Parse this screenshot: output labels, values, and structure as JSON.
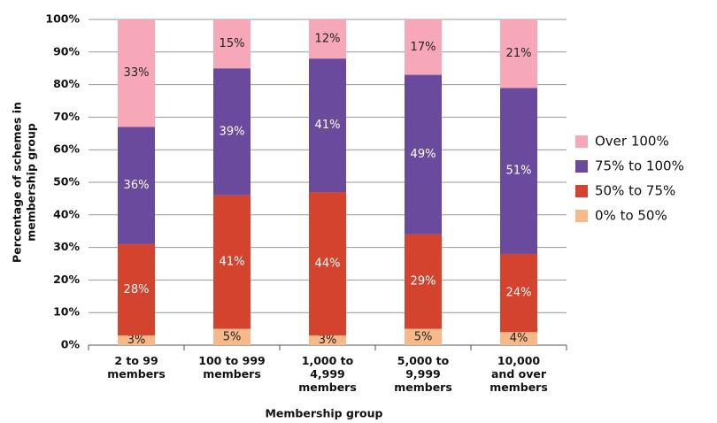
{
  "chart_data": {
    "type": "stacked_bar",
    "x_label": "Membership group",
    "y_label": [
      "Percentage of schemes in",
      "membership group"
    ],
    "categories": [
      [
        "2 to 99",
        "members"
      ],
      [
        "100 to 999",
        "members"
      ],
      [
        "1,000 to",
        "4,999",
        "members"
      ],
      [
        "5,000 to",
        "9,999",
        "members"
      ],
      [
        "10,000",
        "and over",
        "members"
      ]
    ],
    "series": [
      {
        "name": "0% to 50%",
        "color": "#f5b98a",
        "label_color": "#222",
        "values": [
          3,
          5,
          3,
          5,
          4
        ],
        "value_labels": [
          "3%",
          "5%",
          "3%",
          "5%",
          "4%"
        ]
      },
      {
        "name": "50% to 75%",
        "color": "#d4432e",
        "label_color": "#ffffff",
        "values": [
          28,
          41,
          44,
          29,
          24
        ],
        "value_labels": [
          "28%",
          "41%",
          "44%",
          "29%",
          "24%"
        ]
      },
      {
        "name": "75% to 100%",
        "color": "#6a4a9c",
        "label_color": "#ffffff",
        "values": [
          36,
          39,
          41,
          49,
          51
        ],
        "value_labels": [
          "36%",
          "39%",
          "41%",
          "49%",
          "51%"
        ]
      },
      {
        "name": "Over 100%",
        "color": "#f7a8b8",
        "label_color": "#222",
        "values": [
          33,
          15,
          12,
          17,
          21
        ],
        "value_labels": [
          "33%",
          "15%",
          "12%",
          "17%",
          "21%"
        ]
      }
    ],
    "ylim": [
      0,
      100
    ],
    "yticks": [
      {
        "value": 0,
        "label": "0%"
      },
      {
        "value": 10,
        "label": "10%"
      },
      {
        "value": 20,
        "label": "20%"
      },
      {
        "value": 30,
        "label": "30%"
      },
      {
        "value": 40,
        "label": "40%"
      },
      {
        "value": 50,
        "label": "50%"
      },
      {
        "value": 60,
        "label": "60%"
      },
      {
        "value": 70,
        "label": "70%"
      },
      {
        "value": 80,
        "label": "80%"
      },
      {
        "value": 90,
        "label": "90%"
      },
      {
        "value": 100,
        "label": "100%"
      }
    ],
    "grid": true,
    "legend": "right"
  }
}
